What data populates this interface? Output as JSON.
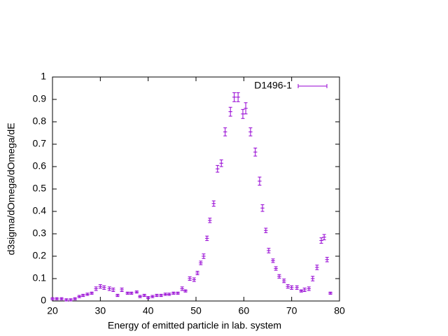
{
  "chart_data": {
    "type": "errorbar",
    "xlabel": "Energy of emitted particle in lab. system",
    "ylabel": "d3sigma/dOmega/dOmega/dE",
    "xlim": [
      20,
      80
    ],
    "xticks": [
      20,
      30,
      40,
      50,
      60,
      70,
      80
    ],
    "ylim": [
      0,
      1
    ],
    "yticks": [
      0,
      0.1,
      0.2,
      0.3,
      0.4,
      0.5,
      0.6,
      0.7,
      0.8,
      0.9,
      1
    ],
    "legend": "top-right",
    "xerr": 0.4,
    "x": [
      20.0,
      20.9,
      21.9,
      22.9,
      23.8,
      24.7,
      25.6,
      26.4,
      27.3,
      28.2,
      29.1,
      30.0,
      30.8,
      31.9,
      32.7,
      33.6,
      34.5,
      35.7,
      36.5,
      37.6,
      38.3,
      39.2,
      40.0,
      40.9,
      41.8,
      42.7,
      43.6,
      44.4,
      45.3,
      46.2,
      47.1,
      47.8,
      48.7,
      49.6,
      50.3,
      51.0,
      51.6,
      52.3,
      52.9,
      53.7,
      54.5,
      55.3,
      56.1,
      57.2,
      58.0,
      58.8,
      59.8,
      60.4,
      61.4,
      62.4,
      63.3,
      63.9,
      64.6,
      65.2,
      66.1,
      66.7,
      67.4,
      68.4,
      69.2,
      70.0,
      71.1,
      72.0,
      72.7,
      73.6,
      74.4,
      75.3,
      76.2,
      76.8,
      77.4,
      78.1
    ],
    "series": [
      {
        "name": "D1496-1",
        "color": "#9400d3",
        "values": [
          0.01,
          0.01,
          0.01,
          0.005,
          0.005,
          0.01,
          0.02,
          0.025,
          0.03,
          0.035,
          0.055,
          0.065,
          0.06,
          0.055,
          0.05,
          0.025,
          0.05,
          0.035,
          0.035,
          0.04,
          0.02,
          0.025,
          0.015,
          0.02,
          0.025,
          0.025,
          0.03,
          0.03,
          0.035,
          0.035,
          0.055,
          0.045,
          0.1,
          0.095,
          0.125,
          0.17,
          0.2,
          0.28,
          0.36,
          0.435,
          0.59,
          0.615,
          0.755,
          0.845,
          0.91,
          0.91,
          0.835,
          0.86,
          0.755,
          0.665,
          0.535,
          0.415,
          0.315,
          0.225,
          0.18,
          0.145,
          0.11,
          0.09,
          0.065,
          0.06,
          0.06,
          0.045,
          0.05,
          0.055,
          0.1,
          0.15,
          0.27,
          0.285,
          0.185,
          0.035
        ],
        "yerr": [
          0.005,
          0.005,
          0.005,
          0.005,
          0.005,
          0.005,
          0.005,
          0.005,
          0.005,
          0.005,
          0.008,
          0.008,
          0.008,
          0.008,
          0.008,
          0.005,
          0.008,
          0.005,
          0.005,
          0.005,
          0.005,
          0.005,
          0.005,
          0.005,
          0.005,
          0.005,
          0.005,
          0.005,
          0.005,
          0.005,
          0.008,
          0.005,
          0.008,
          0.008,
          0.008,
          0.008,
          0.01,
          0.01,
          0.01,
          0.012,
          0.015,
          0.015,
          0.018,
          0.02,
          0.02,
          0.02,
          0.02,
          0.025,
          0.018,
          0.018,
          0.018,
          0.015,
          0.01,
          0.01,
          0.008,
          0.008,
          0.008,
          0.008,
          0.008,
          0.008,
          0.008,
          0.005,
          0.008,
          0.008,
          0.01,
          0.01,
          0.012,
          0.012,
          0.01,
          0.005
        ]
      }
    ]
  }
}
